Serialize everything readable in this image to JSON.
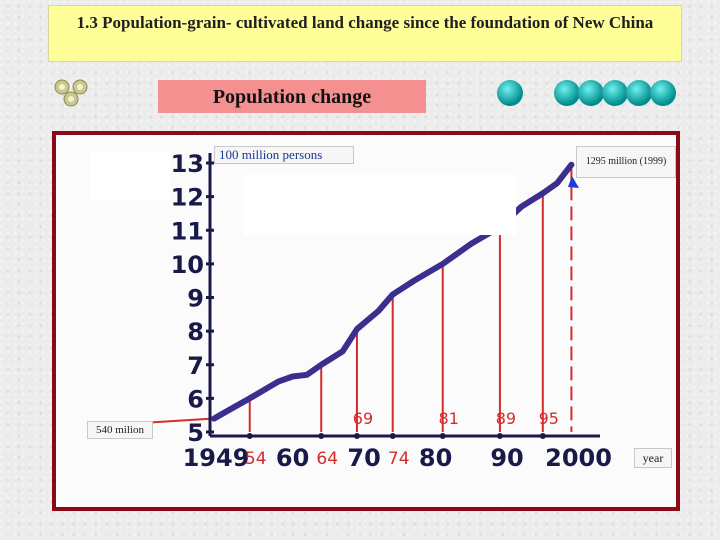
{
  "title": "1.3 Population-grain- cultivated land change since the foundation of New China",
  "subtitle": "Population change",
  "unit_label": "100 million persons",
  "x_label": "year",
  "start_annotation": "540 milion",
  "end_annotation": "1295 million (1999)",
  "colors": {
    "curve": "#3a2f8c",
    "drop_lines": "#d42c2c",
    "axis": "#1a1a4a",
    "frame": "#8b0a18",
    "title_bg": "#ffff99",
    "subtitle_bg": "#f49090"
  },
  "chart_data": {
    "type": "line",
    "xlabel": "year",
    "ylabel": "100 million persons",
    "y_ticks": [
      "5",
      "6",
      "7",
      "8",
      "9",
      "10",
      "11",
      "12",
      "13"
    ],
    "x_ticks": [
      "1949",
      "60",
      "70",
      "80",
      "90",
      "2000"
    ],
    "x_tick_values": [
      1949,
      1960,
      1970,
      1980,
      1990,
      2000
    ],
    "marked_years": [
      "54",
      "64",
      "69",
      "74",
      "81",
      "89",
      "95"
    ],
    "marked_year_values": [
      1954,
      1964,
      1969,
      1974,
      1981,
      1989,
      1995
    ],
    "xlim": [
      1949,
      2003
    ],
    "ylim": [
      5,
      13.5
    ],
    "series": [
      {
        "x": [
          1949,
          1950,
          1954,
          1958,
          1960,
          1962,
          1964,
          1967,
          1969,
          1972,
          1974,
          1977,
          1981,
          1985,
          1989,
          1992,
          1995,
          1997,
          1999
        ],
        "y": [
          5.4,
          5.52,
          6.0,
          6.5,
          6.65,
          6.7,
          7.0,
          7.4,
          8.06,
          8.6,
          9.09,
          9.5,
          10.0,
          10.6,
          11.1,
          11.7,
          12.1,
          12.4,
          12.95
        ]
      }
    ]
  }
}
